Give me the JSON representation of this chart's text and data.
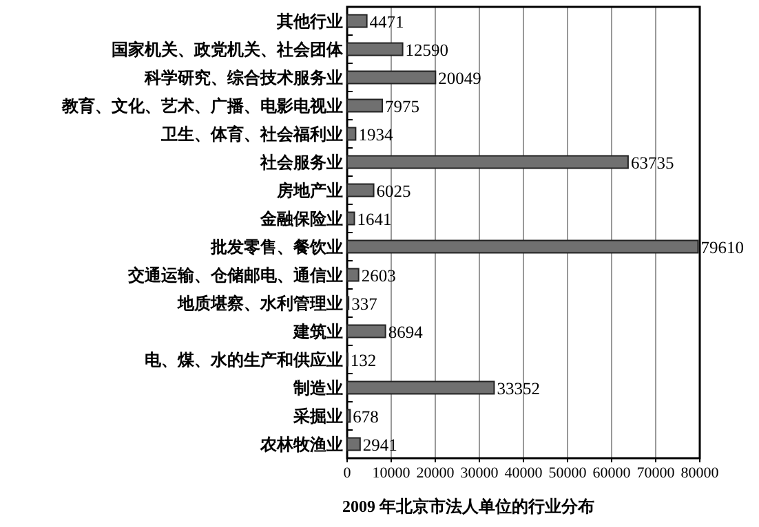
{
  "chart_data": {
    "type": "bar",
    "orientation": "horizontal",
    "title": "2009 年北京市法人单位的行业分布",
    "categories": [
      "其他行业",
      "国家机关、政党机关、社会团体",
      "科学研究、综合技术服务业",
      "教育、文化、艺术、广播、电影电视业",
      "卫生、体育、社会福利业",
      "社会服务业",
      "房地产业",
      "金融保险业",
      "批发零售、餐饮业",
      "交通运输、仓储邮电、通信业",
      "地质堪察、水利管理业",
      "建筑业",
      "电、煤、水的生产和供应业",
      "制造业",
      "采掘业",
      "农林牧渔业"
    ],
    "values": [
      4471,
      12590,
      20049,
      7975,
      1934,
      63735,
      6025,
      1641,
      79610,
      2603,
      337,
      8694,
      132,
      33352,
      678,
      2941
    ],
    "color": "#707070",
    "xlim": [
      0,
      80000
    ],
    "xticks": [
      0,
      10000,
      20000,
      30000,
      40000,
      50000,
      60000,
      70000,
      80000
    ],
    "grid": "x",
    "data_labels": true
  }
}
